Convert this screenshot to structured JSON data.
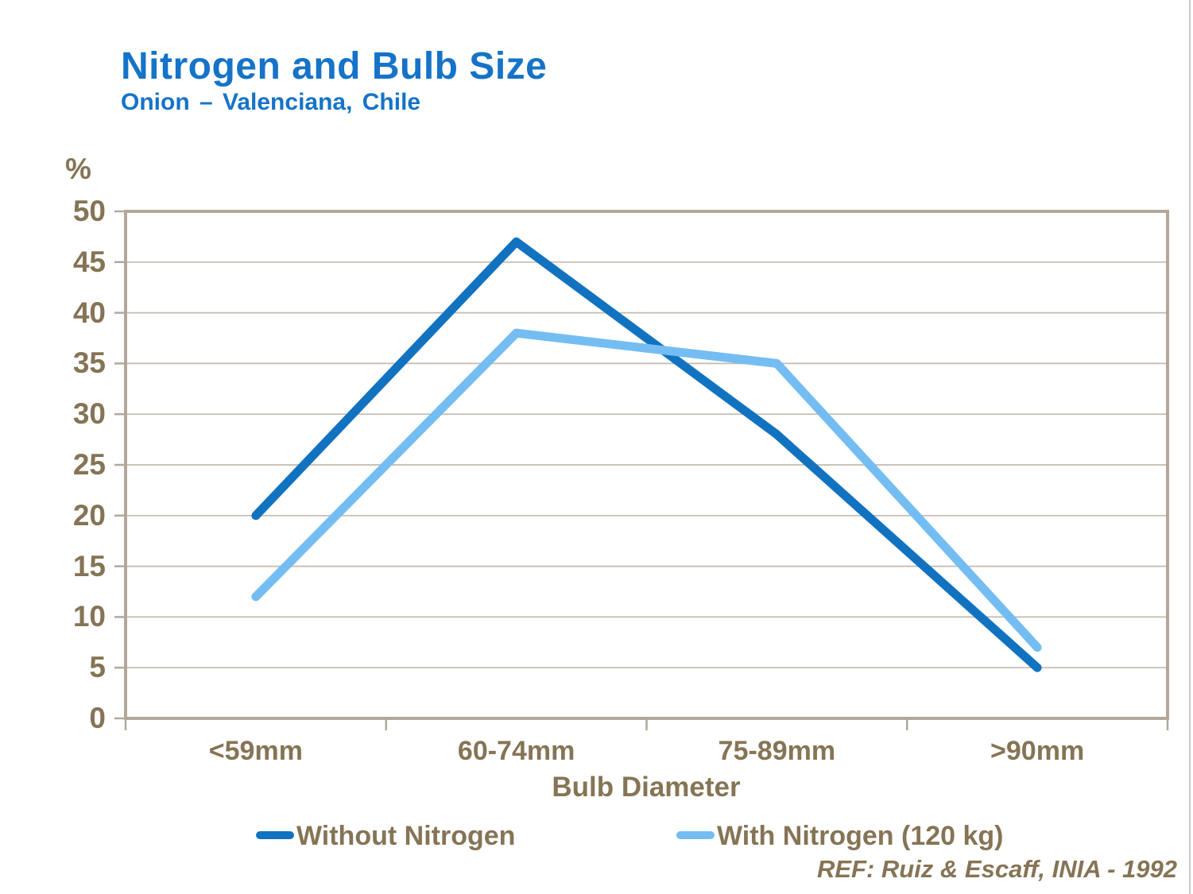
{
  "page": {
    "title": "Nitrogen and Bulb Size",
    "subtitle": "Onion – Valenciana, Chile",
    "ref": "REF: Ruiz & Escaff, INIA - 1992"
  },
  "chart_data": {
    "type": "line",
    "title": "Nitrogen and Bulb Size",
    "subtitle": "Onion – Valenciana, Chile",
    "categories": [
      "<59mm",
      "60-74mm",
      "75-89mm",
      ">90mm"
    ],
    "series": [
      {
        "name": "Without Nitrogen",
        "color": "#1173c0",
        "values": [
          20,
          47,
          28,
          5
        ]
      },
      {
        "name": "With Nitrogen (120 kg)",
        "color": "#74bdf2",
        "values": [
          12,
          38,
          35,
          7
        ]
      }
    ],
    "xlabel": "Bulb Diameter",
    "ylabel": "%",
    "ylim": [
      0,
      50
    ],
    "ytick_step": 5,
    "yticks": [
      0,
      5,
      10,
      15,
      20,
      25,
      30,
      35,
      40,
      45,
      50
    ],
    "grid": true,
    "legend_position": "bottom"
  },
  "colors": {
    "title_blue": "#1573c8",
    "axis_text_brown": "#857455",
    "frame_tan": "#b2a89a",
    "gridline": "#c3baad",
    "page_edge": "#c9c9c9"
  }
}
